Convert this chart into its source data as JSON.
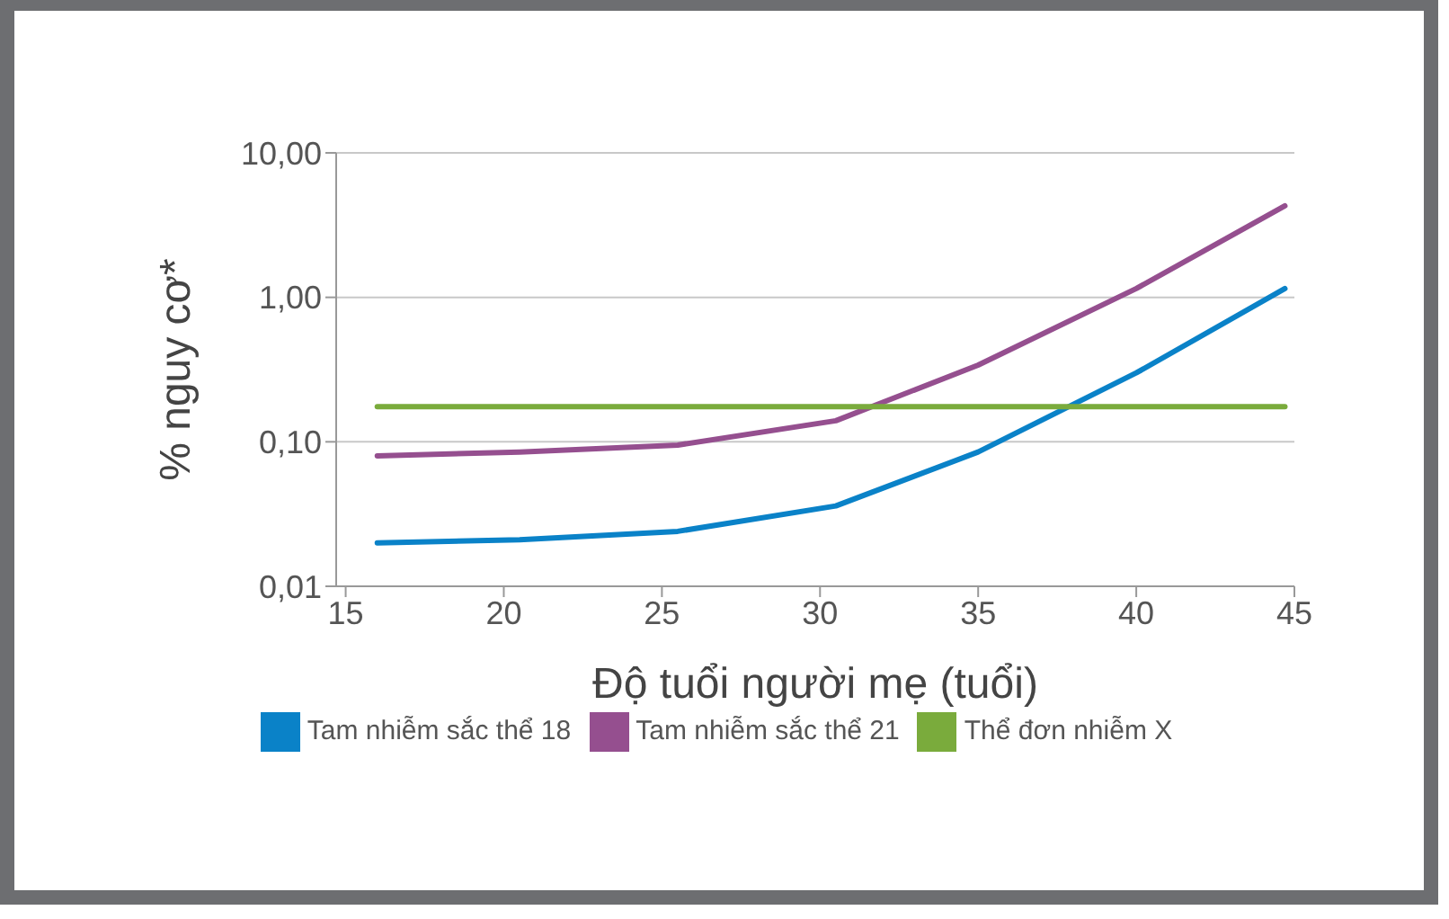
{
  "chart_data": {
    "type": "line",
    "xlabel": "Độ tuổi người mẹ (tuổi)",
    "ylabel": "% nguy cơ*",
    "log": "y",
    "xlim": [
      14.7,
      45
    ],
    "xticks": [
      15,
      20,
      25,
      30,
      35,
      40,
      45
    ],
    "ylim": [
      0.01,
      10
    ],
    "yticks": [
      {
        "value": 0.01,
        "label": "0,01"
      },
      {
        "value": 0.1,
        "label": "0,10"
      },
      {
        "value": 1,
        "label": "1,00"
      },
      {
        "value": 10,
        "label": "10,00"
      }
    ],
    "grid": "y",
    "legend": "bottom",
    "marker": "none",
    "line_style": "solid",
    "series": [
      {
        "name": "Tam nhiễm sắc thể 21",
        "color": "#954f8f",
        "x": [
          16,
          20.5,
          25.5,
          30.5,
          35,
          40,
          44.7
        ],
        "values": [
          0.08,
          0.085,
          0.095,
          0.14,
          0.34,
          1.15,
          4.3
        ]
      },
      {
        "name": "Tam nhiễm sắc thể 18",
        "color": "#0a82c8",
        "x": [
          16,
          20.5,
          25.5,
          30.5,
          35,
          40,
          44.7
        ],
        "values": [
          0.02,
          0.021,
          0.024,
          0.036,
          0.085,
          0.3,
          1.15
        ]
      },
      {
        "name": "Thể đơn nhiễm X",
        "color": "#7aab3c",
        "x": [
          16,
          44.7
        ],
        "values": [
          0.175,
          0.175
        ]
      }
    ]
  }
}
